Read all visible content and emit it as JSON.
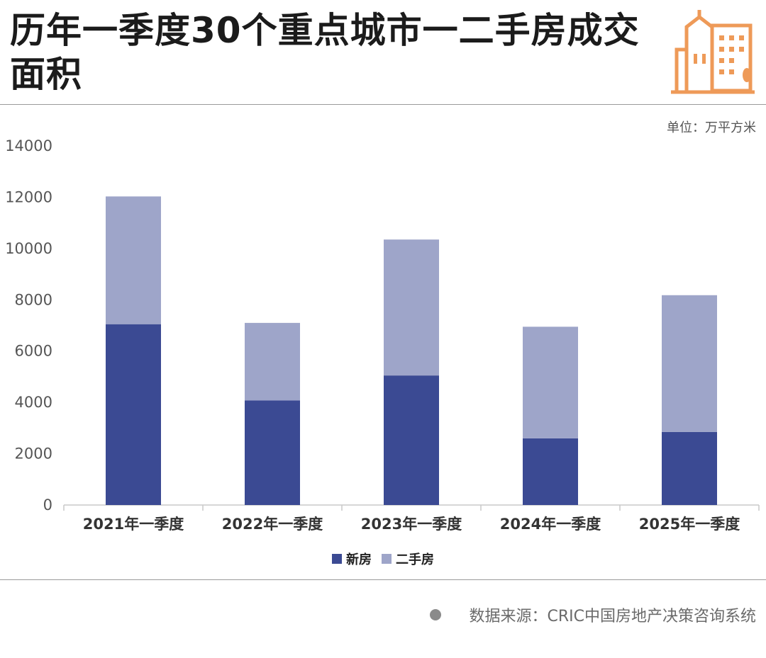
{
  "header": {
    "title": "历年一季度30个重点城市一二手房成交面积",
    "unit": "单位：万平方米"
  },
  "colors": {
    "new_house": "#3b4a93",
    "second_hand": "#9ea5c9",
    "logo": "#ee9a58"
  },
  "logo": {
    "icon": "city-buildings-icon"
  },
  "chart_data": {
    "type": "bar",
    "stacked": true,
    "categories": [
      "2021年一季度",
      "2022年一季度",
      "2023年一季度",
      "2024年一季度",
      "2025年一季度"
    ],
    "series": [
      {
        "name": "新房",
        "values": [
          7050,
          4080,
          5050,
          2600,
          2850
        ]
      },
      {
        "name": "二手房",
        "values": [
          4980,
          3020,
          5300,
          4350,
          5330
        ]
      }
    ],
    "ylim": [
      0,
      14000
    ],
    "yticks": [
      "0",
      "2000",
      "4000",
      "6000",
      "8000",
      "10000",
      "12000",
      "14000"
    ],
    "grid": false,
    "legend": "bottom-center"
  },
  "footer": {
    "source": "数据来源：CRIC中国房地产决策咨询系统"
  }
}
